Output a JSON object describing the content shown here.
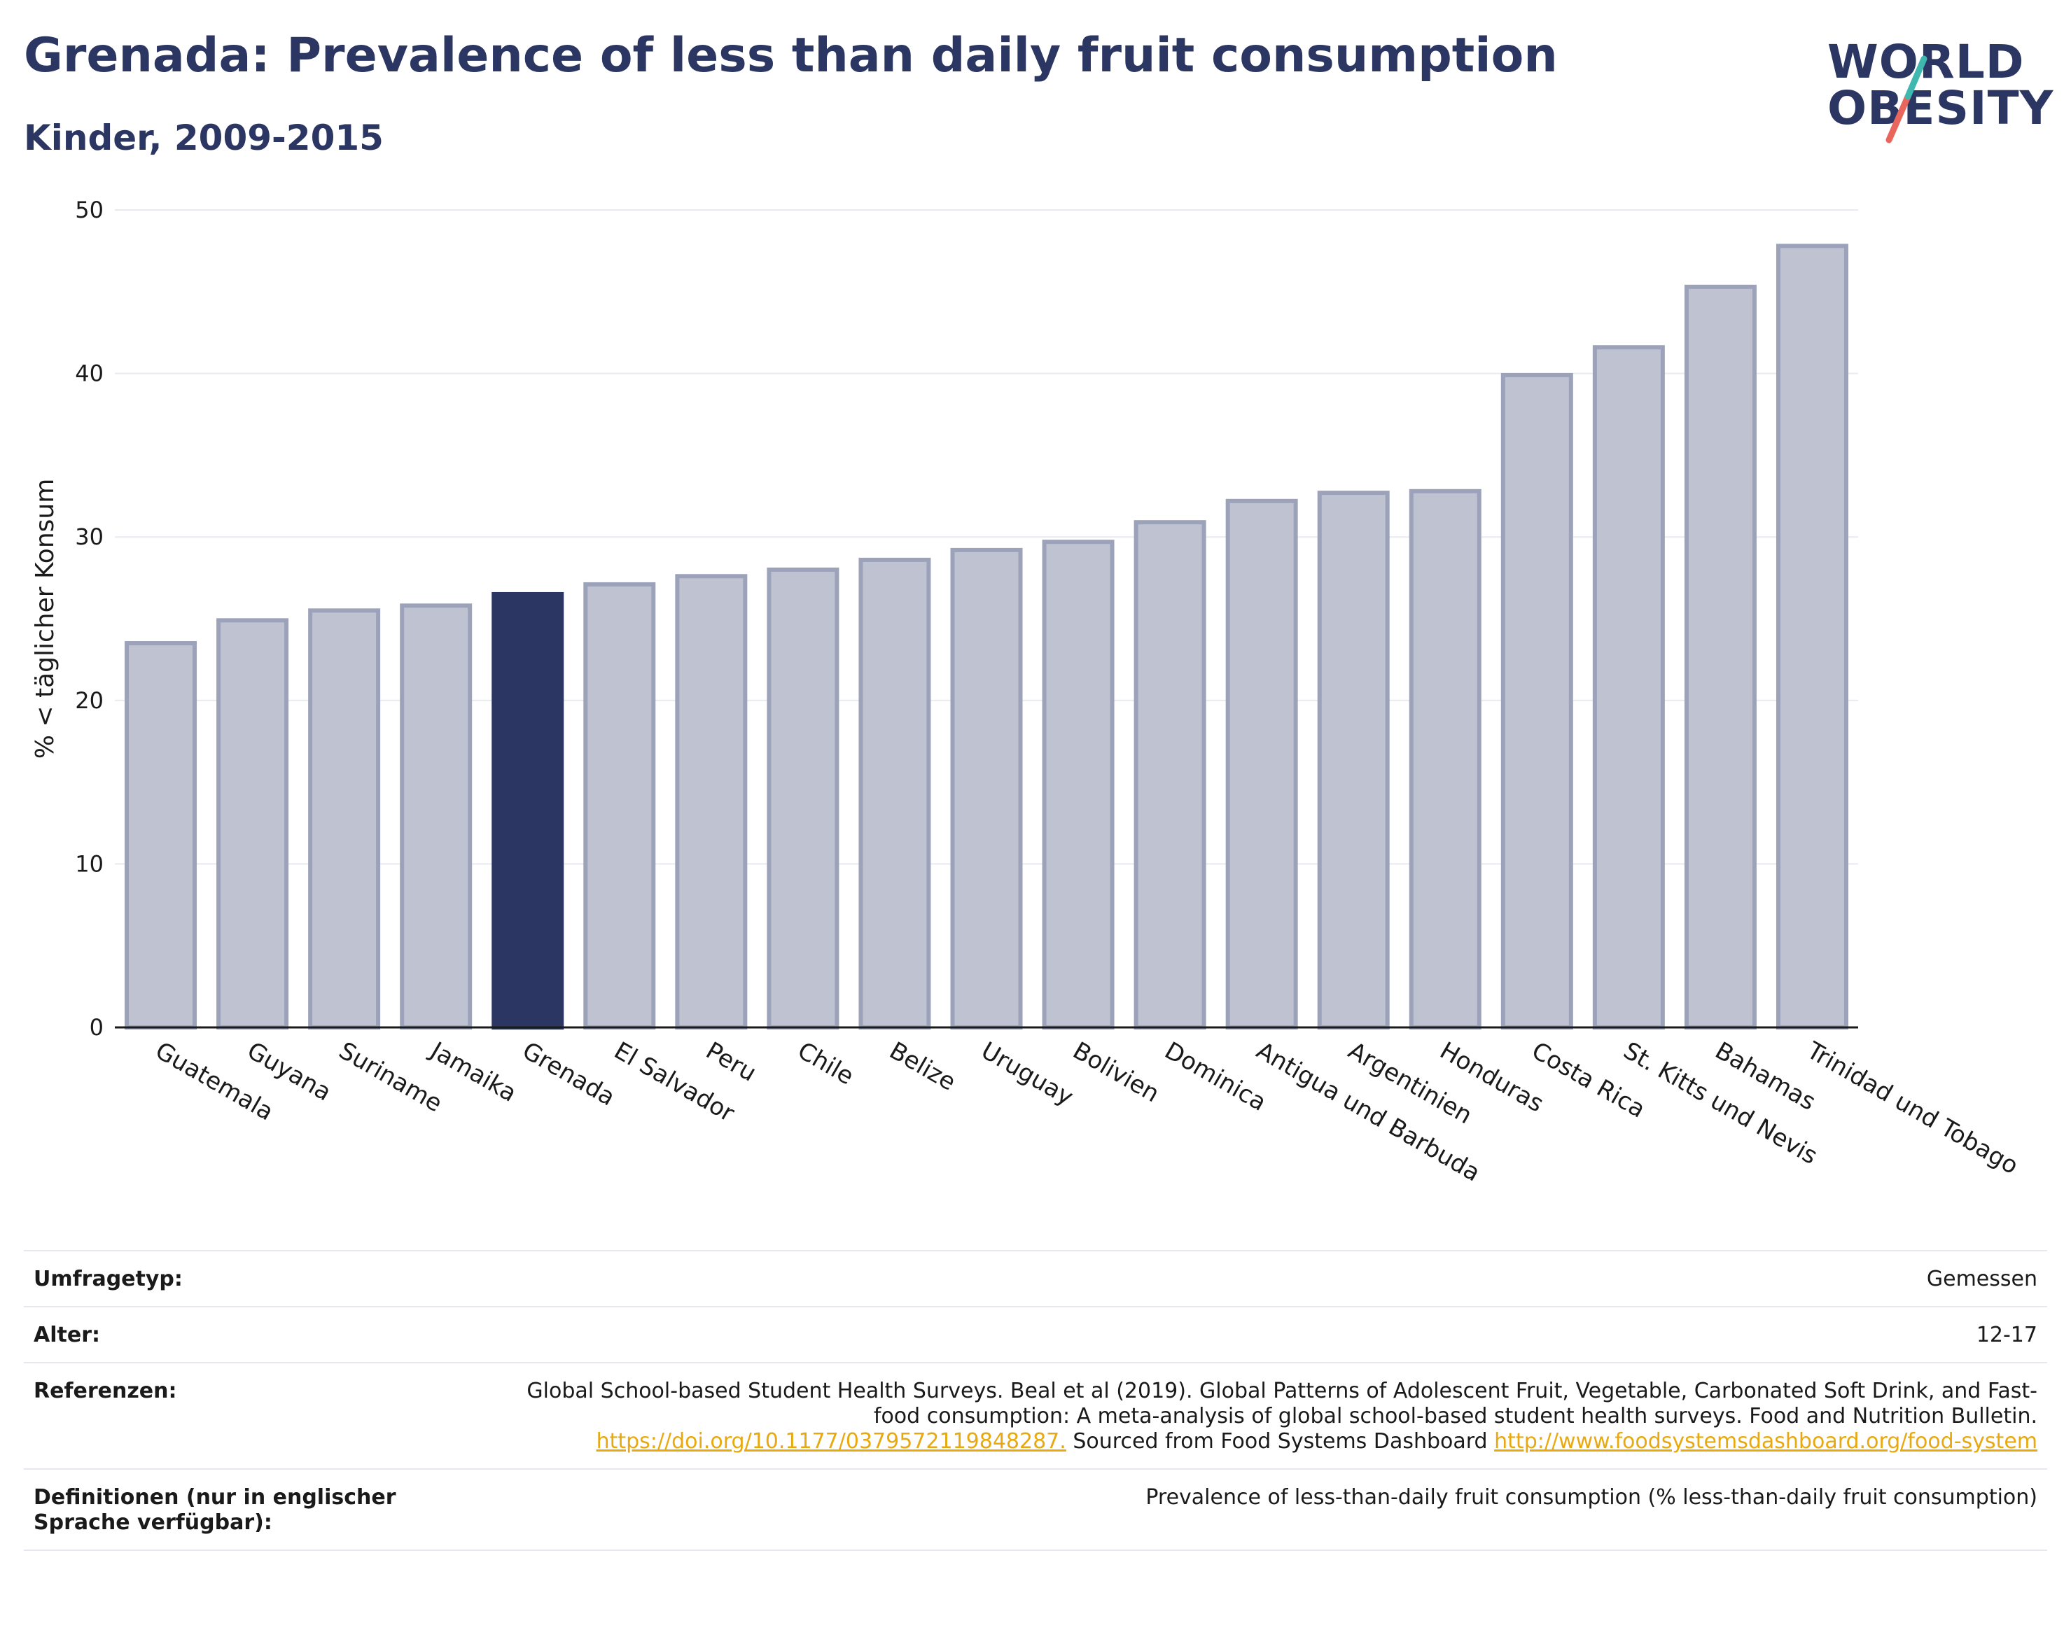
{
  "header": {
    "title": "Grenada: Prevalence of less than daily fruit consumption",
    "subtitle": "Kinder, 2009-2015"
  },
  "logo": {
    "line1": "WORLD",
    "line2": "OBESITY",
    "colors": {
      "text": "#2b3662",
      "slash_top": "#3fb8b0",
      "slash_bottom": "#e8665c"
    }
  },
  "chart_data": {
    "type": "bar",
    "ylabel": "% < täglicher Konsum",
    "ylim": [
      0,
      50
    ],
    "yticks": [
      0,
      10,
      20,
      30,
      40,
      50
    ],
    "grid": true,
    "categories": [
      "Guatemala",
      "Guyana",
      "Suriname",
      "Jamaika",
      "Grenada",
      "El Salvador",
      "Peru",
      "Chile",
      "Belize",
      "Uruguay",
      "Bolivien",
      "Dominica",
      "Antigua und Barbuda",
      "Argentinien",
      "Honduras",
      "Costa Rica",
      "St. Kitts und Nevis",
      "Bahamas",
      "Trinidad und Tobago"
    ],
    "values": [
      23.5,
      24.9,
      25.5,
      25.8,
      26.5,
      27.1,
      27.6,
      28.0,
      28.6,
      29.2,
      29.7,
      30.9,
      32.2,
      32.7,
      32.8,
      39.9,
      41.6,
      45.3,
      47.8
    ],
    "highlight": "Grenada",
    "colors": {
      "bar": "#bfc3d1",
      "bar_border": "#9ca2b9",
      "highlight": "#2b3662",
      "grid": "#e8eaf0",
      "axis": "#1a1a1a"
    }
  },
  "info": {
    "survey_type_label": "Umfragetyp:",
    "survey_type_value": "Gemessen",
    "age_label": "Alter:",
    "age_value": "12-17",
    "references_label": "Referenzen:",
    "references_text1": "Global School-based Student Health Surveys. Beal et al (2019). Global Patterns of Adolescent Fruit, Vegetable, Carbonated Soft Drink, and Fast-food consumption: A meta-analysis of global school-based student health surveys. Food and Nutrition Bulletin.",
    "references_link1": "https://doi.org/10.1177/0379572119848287.",
    "references_text2": "Sourced from Food Systems Dashboard",
    "references_link2": "http://www.foodsystemsdashboard.org/food-system",
    "definitions_label": "Definitionen (nur in englischer Sprache verfügbar):",
    "definitions_value": "Prevalence of less-than-daily fruit consumption (% less-than-daily fruit consumption)"
  }
}
